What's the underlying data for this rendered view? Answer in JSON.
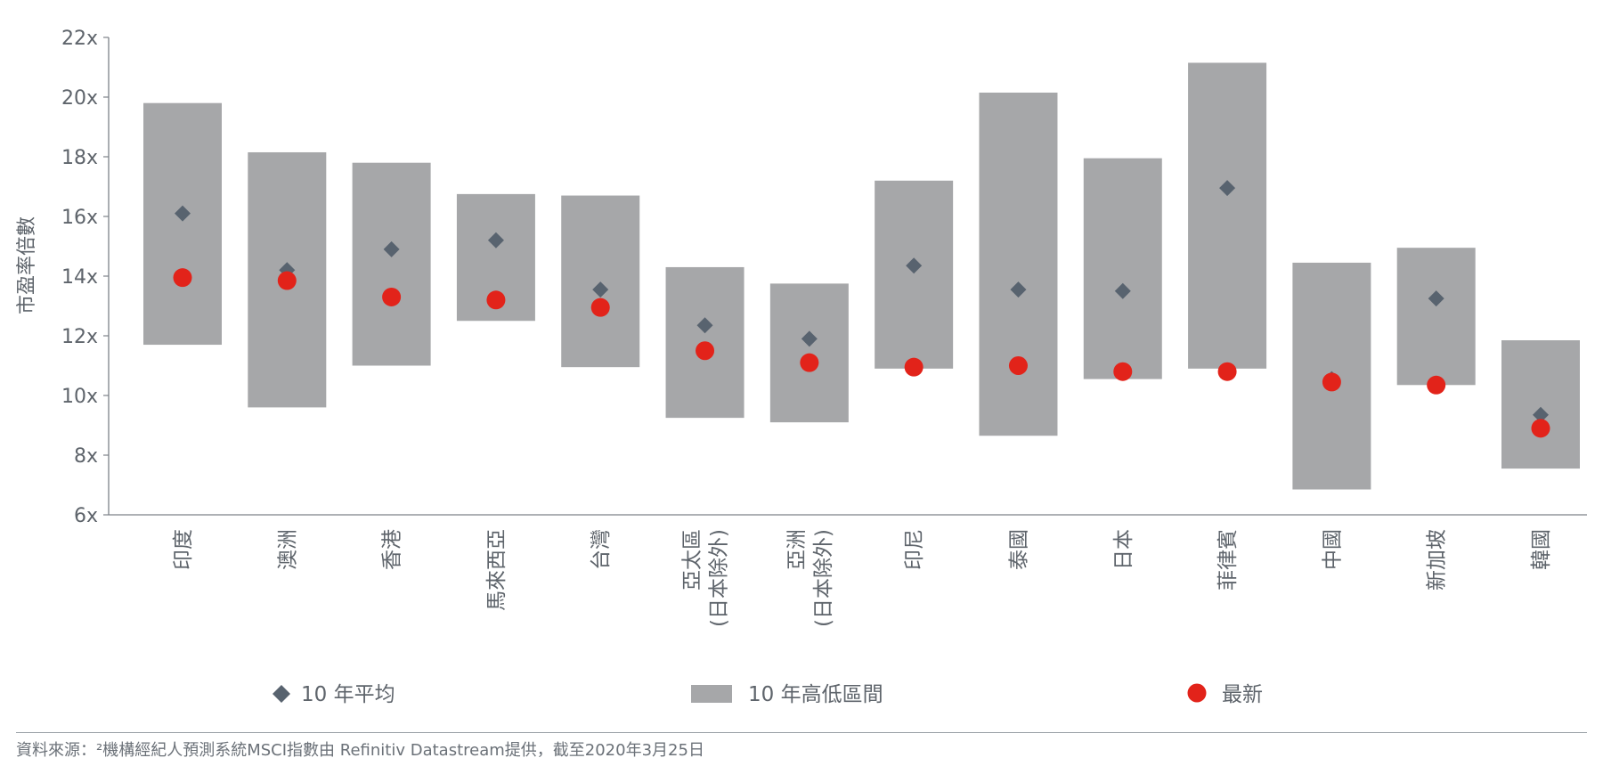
{
  "chart_data": {
    "type": "range-bar",
    "ylabel": "市盈率倍數",
    "yticks": [
      "22x",
      "20x",
      "18x",
      "16x",
      "14x",
      "12x",
      "10x",
      "8x",
      "6x"
    ],
    "ylim": [
      6,
      22
    ],
    "categories": [
      [
        "印度"
      ],
      [
        "澳洲"
      ],
      [
        "香港"
      ],
      [
        "馬來西亞"
      ],
      [
        "台灣"
      ],
      [
        "亞太區",
        "(日本除外)"
      ],
      [
        "亞洲",
        "(日本除外)"
      ],
      [
        "印尼"
      ],
      [
        "泰國"
      ],
      [
        "日本"
      ],
      [
        "菲律賓"
      ],
      [
        "中國"
      ],
      [
        "新加坡"
      ],
      [
        "韓國"
      ]
    ],
    "series": [
      {
        "name": "10 年高低區間",
        "type": "range",
        "low": [
          11.7,
          9.6,
          11.0,
          12.5,
          10.95,
          9.25,
          9.1,
          10.9,
          8.65,
          10.55,
          10.9,
          6.85,
          10.35,
          7.55
        ],
        "high": [
          19.8,
          18.15,
          17.8,
          16.75,
          16.7,
          14.3,
          13.75,
          17.2,
          20.15,
          17.95,
          21.15,
          14.45,
          14.95,
          11.85
        ]
      },
      {
        "name": "10 年平均",
        "type": "marker",
        "values": [
          16.1,
          14.2,
          14.9,
          15.2,
          13.55,
          12.35,
          11.9,
          14.35,
          13.55,
          13.5,
          16.95,
          10.55,
          13.25,
          9.35
        ]
      },
      {
        "name": "最新",
        "type": "marker",
        "values": [
          13.95,
          13.85,
          13.3,
          13.2,
          12.95,
          11.5,
          11.1,
          10.95,
          11.0,
          10.8,
          10.8,
          10.45,
          10.35,
          8.9
        ]
      }
    ],
    "legend_position": "bottom",
    "colors": {
      "range": "#a6a7a9",
      "average": "#58636f",
      "latest": "#e2231a",
      "axis": "#7d8289"
    }
  },
  "source": "資料來源：²機構經紀人預測系統MSCI指數由 Refinitiv Datastream提供，截至2020年3月25日"
}
